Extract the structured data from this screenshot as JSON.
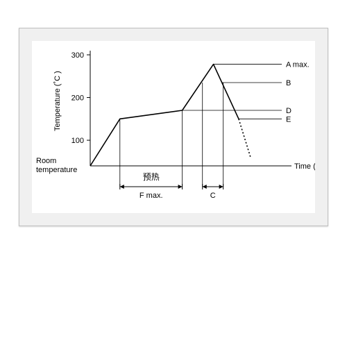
{
  "chart": {
    "type": "line",
    "background_color": "#ffffff",
    "panel_color": "#f0f0f0",
    "axis_color": "#000000",
    "curve_color": "#000000",
    "ref_line_color": "#000000",
    "curve_width": 1.6,
    "ref_line_width": 0.8,
    "dotted_dash": "2,3",
    "font_family": "Arial",
    "font_size_axis_label": 11,
    "font_size_tick": 11,
    "font_size_annot": 11,
    "font_size_cjk": 12,
    "y_axis": {
      "label": "Temperature (˚C )",
      "min": 40,
      "max": 300,
      "ticks": [
        100,
        200,
        300
      ],
      "room_label": "Room\ntemperature"
    },
    "x_axis": {
      "label": "Time (s)",
      "min": 0,
      "max": 115
    },
    "profile_points": {
      "start": {
        "t": 0,
        "T": 40
      },
      "p1": {
        "t": 20,
        "T": 150
      },
      "p2": {
        "t": 62,
        "T": 170
      },
      "peak": {
        "t": 83,
        "T": 278
      },
      "end": {
        "t": 100,
        "T": 150
      },
      "end_dot": {
        "t": 108,
        "T": 60
      }
    },
    "ref_levels": {
      "A": 278,
      "B": 235,
      "D": 170,
      "E": 150
    },
    "c_interval": {
      "t_start": 75.6,
      "t_end": 89.6
    },
    "f_interval": {
      "t_start": 20,
      "t_end": 62
    },
    "labels": {
      "A": "A max.",
      "B": "B",
      "D": "D",
      "E": "E",
      "C": "C",
      "F_cjk": "预热",
      "F": "F max."
    }
  }
}
